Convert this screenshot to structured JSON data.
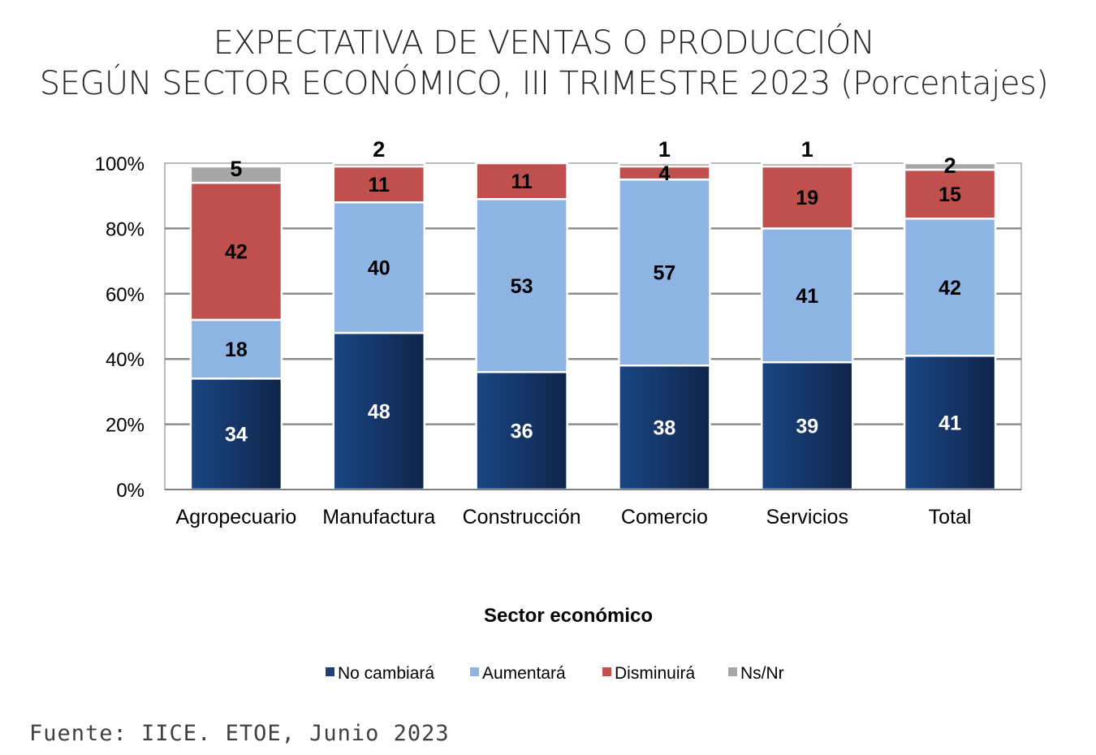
{
  "chart_data": {
    "type": "bar",
    "stacked": true,
    "title": [
      "EXPECTATIVA DE VENTAS O PRODUCCIÓN",
      "SEGÚN SECTOR ECONÓMICO, III TRIMESTRE 2023 (Porcentajes)"
    ],
    "xlabel": "Sector económico",
    "ylabel": "",
    "categories": [
      "Agropecuario",
      "Manufactura",
      "Construcción",
      "Comercio",
      "Servicios",
      "Total"
    ],
    "yticks": [
      "0%",
      "20%",
      "40%",
      "60%",
      "80%",
      "100%"
    ],
    "ylim": [
      0,
      100
    ],
    "grid": true,
    "legend": "bottom",
    "series": [
      {
        "name": "No cambiará",
        "values": [
          34,
          48,
          36,
          38,
          39,
          41
        ],
        "color": "#1F3F75"
      },
      {
        "name": "Aumentará",
        "values": [
          18,
          40,
          53,
          57,
          41,
          42
        ],
        "color": "#8EB4E3"
      },
      {
        "name": "Disminuirá",
        "values": [
          42,
          11,
          11,
          4,
          19,
          15
        ],
        "color": "#C0504D"
      },
      {
        "name": "Ns/Nr",
        "values": [
          5,
          2,
          null,
          1,
          1,
          2
        ],
        "color": "#A6A6A6"
      }
    ]
  },
  "source": "Fuente:  IICE. ETOE, Junio 2023"
}
